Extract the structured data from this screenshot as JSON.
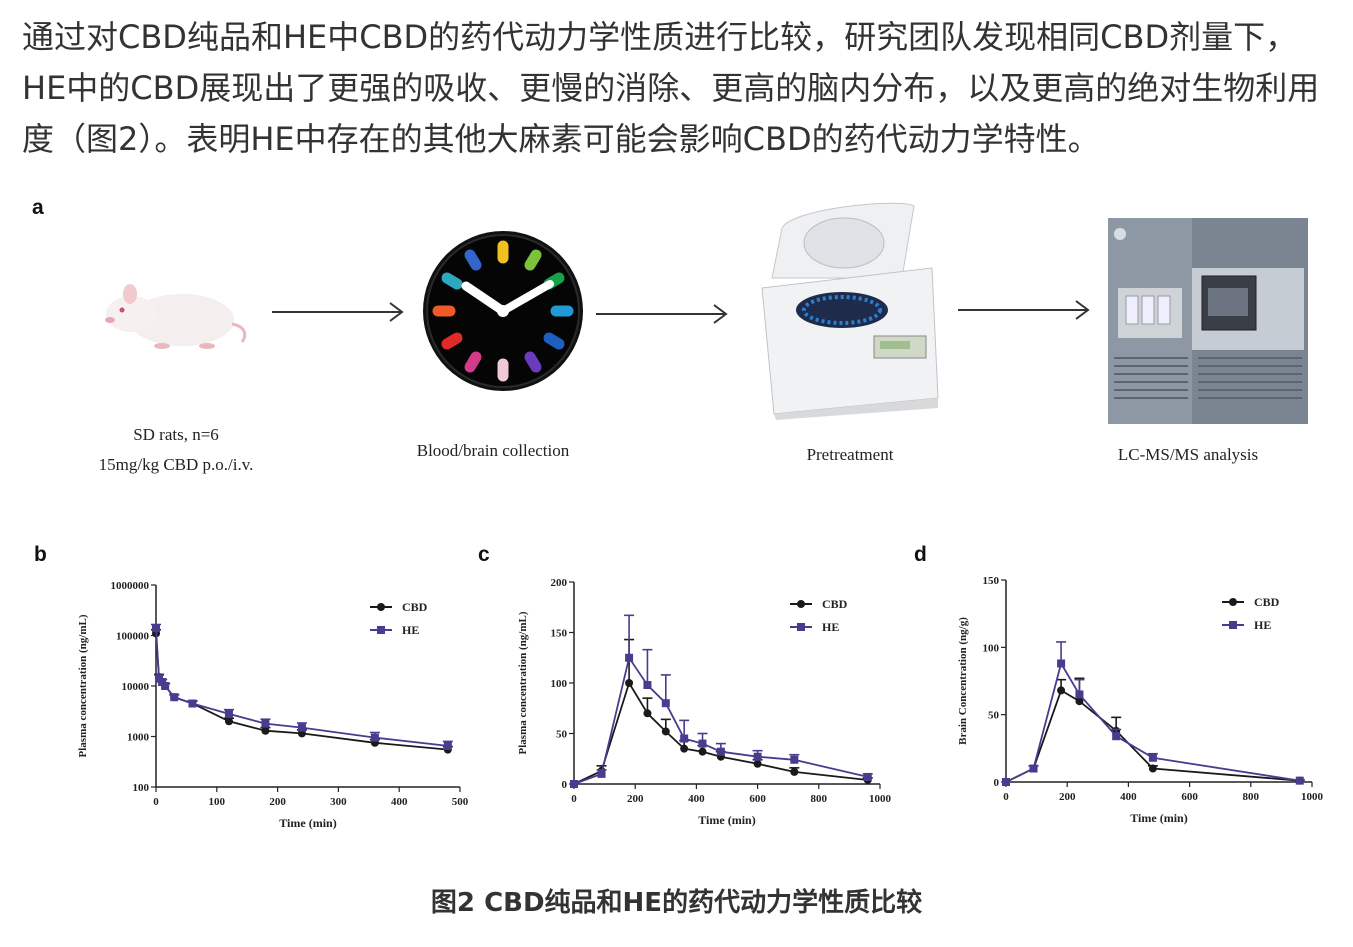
{
  "intro_text": "通过对CBD纯品和HE中CBD的药代动力学性质进行比较，研究团队发现相同CBD剂量下，HE中的CBD展现出了更强的吸收、更慢的消除、更高的脑内分布，以及更高的绝对生物利用度（图2）。表明HE中存在的其他大麻素可能会影响CBD的药代动力学特性。",
  "panels": {
    "a": "a",
    "b": "b",
    "c": "c",
    "d": "d"
  },
  "workflow": {
    "steps": [
      {
        "line1": "SD rats, n=6",
        "line2": "15mg/kg CBD p.o./i.v.",
        "icon": "rat-icon"
      },
      {
        "line1": "Blood/brain collection",
        "line2": "",
        "icon": "clock-icon"
      },
      {
        "line1": "Pretreatment",
        "line2": "",
        "icon": "centrifuge-icon"
      },
      {
        "line1": "LC-MS/MS analysis",
        "line2": "",
        "icon": "mass-spectrometer-icon"
      }
    ]
  },
  "colors": {
    "CBD": "#1a1a1a",
    "HE": "#4b3b8f"
  },
  "chart_data": [
    {
      "id": "b",
      "type": "line",
      "xlabel": "Time (min)",
      "ylabel": "Plasma concentration (ng/mL)",
      "xlim": [
        0,
        500
      ],
      "ylim": [
        100,
        1000000
      ],
      "yscale": "log",
      "xticks": [
        0,
        100,
        200,
        300,
        400,
        500
      ],
      "xtick_labels": [
        "0",
        "100",
        "200",
        "300",
        "400",
        "500"
      ],
      "yticks": [
        100,
        1000,
        10000,
        100000,
        1000000
      ],
      "ytick_labels": [
        "100",
        "1000",
        "10000",
        "100000",
        "1000000"
      ],
      "legend": "top-right",
      "series": [
        {
          "name": "CBD",
          "marker": "circle",
          "x": [
            0,
            5,
            10,
            15,
            30,
            60,
            120,
            180,
            240,
            360,
            480
          ],
          "y": [
            110000,
            15000,
            12000,
            10000,
            6000,
            4500,
            2000,
            1300,
            1150,
            750,
            550
          ],
          "err": [
            20000,
            2000,
            1500,
            1200,
            700,
            500,
            300,
            200,
            200,
            120,
            80
          ]
        },
        {
          "name": "HE",
          "marker": "square",
          "x": [
            0,
            5,
            10,
            15,
            30,
            60,
            120,
            180,
            240,
            360,
            480
          ],
          "y": [
            140000,
            14000,
            12000,
            10000,
            6000,
            4500,
            2800,
            1800,
            1500,
            950,
            650
          ],
          "err": [
            25000,
            2500,
            1500,
            1200,
            800,
            600,
            600,
            400,
            350,
            250,
            150
          ]
        }
      ]
    },
    {
      "id": "c",
      "type": "line",
      "xlabel": "Time (min)",
      "ylabel": "Plasma concentration (ng/mL)",
      "xlim": [
        0,
        1000
      ],
      "ylim": [
        0,
        200
      ],
      "yscale": "linear",
      "xticks": [
        0,
        200,
        400,
        600,
        800,
        1000
      ],
      "xtick_labels": [
        "0",
        "200",
        "400",
        "600",
        "800",
        "1000"
      ],
      "yticks": [
        0,
        50,
        100,
        150,
        200
      ],
      "ytick_labels": [
        "0",
        "50",
        "100",
        "150",
        "200"
      ],
      "legend": "top-right",
      "series": [
        {
          "name": "CBD",
          "marker": "circle",
          "x": [
            0,
            90,
            180,
            240,
            300,
            360,
            420,
            480,
            600,
            720,
            960
          ],
          "y": [
            0,
            13,
            100,
            70,
            52,
            35,
            32,
            27,
            20,
            12,
            4
          ],
          "err": [
            0,
            5,
            43,
            15,
            12,
            8,
            6,
            5,
            4,
            4,
            2
          ]
        },
        {
          "name": "HE",
          "marker": "square",
          "x": [
            0,
            90,
            180,
            240,
            300,
            360,
            420,
            480,
            600,
            720,
            960
          ],
          "y": [
            0,
            10,
            125,
            98,
            80,
            45,
            40,
            32,
            27,
            24,
            7
          ],
          "err": [
            0,
            4,
            42,
            35,
            28,
            18,
            10,
            8,
            6,
            5,
            3
          ]
        }
      ]
    },
    {
      "id": "d",
      "type": "line",
      "xlabel": "Time (min)",
      "ylabel": "Brain Concentration (ng/g)",
      "xlim": [
        0,
        1000
      ],
      "ylim": [
        0,
        150
      ],
      "yscale": "linear",
      "xticks": [
        0,
        200,
        400,
        600,
        800,
        1000
      ],
      "xtick_labels": [
        "0",
        "200",
        "400",
        "600",
        "800",
        "1000"
      ],
      "yticks": [
        0,
        50,
        100,
        150
      ],
      "ytick_labels": [
        "0",
        "50",
        "100",
        "150"
      ],
      "legend": "top-right",
      "series": [
        {
          "name": "CBD",
          "marker": "circle",
          "x": [
            0,
            90,
            180,
            240,
            360,
            480,
            960
          ],
          "y": [
            0,
            10,
            68,
            60,
            38,
            10,
            1
          ],
          "err": [
            0,
            2,
            8,
            17,
            10,
            2,
            0.5
          ]
        },
        {
          "name": "HE",
          "marker": "square",
          "x": [
            0,
            90,
            180,
            240,
            360,
            480,
            960
          ],
          "y": [
            0,
            10,
            88,
            65,
            34,
            18,
            1
          ],
          "err": [
            0,
            2,
            16,
            11,
            5,
            3,
            0.5
          ]
        }
      ]
    }
  ],
  "caption": "图2 CBD纯品和HE的药代动力学性质比较"
}
